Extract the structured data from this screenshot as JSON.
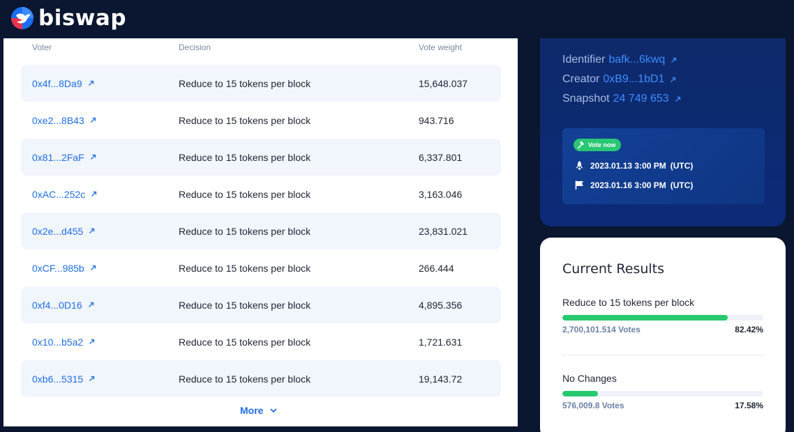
{
  "brand": {
    "name": "biswap"
  },
  "votes_table": {
    "columns": {
      "voter": "Voter",
      "decision": "Decision",
      "weight": "Vote weight"
    },
    "rows": [
      {
        "voter": "0x4f...8Da9",
        "decision": "Reduce to 15 tokens per block",
        "weight": "15,648.037"
      },
      {
        "voter": "0xe2...8B43",
        "decision": "Reduce to 15 tokens per block",
        "weight": "943.716"
      },
      {
        "voter": "0x81...2FaF",
        "decision": "Reduce to 15 tokens per block",
        "weight": "6,337.801"
      },
      {
        "voter": "0xAC...252c",
        "decision": "Reduce to 15 tokens per block",
        "weight": "3,163.046"
      },
      {
        "voter": "0x2e...d455",
        "decision": "Reduce to 15 tokens per block",
        "weight": "23,831.021"
      },
      {
        "voter": "0xCF...985b",
        "decision": "Reduce to 15 tokens per block",
        "weight": "266.444"
      },
      {
        "voter": "0xf4...0D16",
        "decision": "Reduce to 15 tokens per block",
        "weight": "4,895.356"
      },
      {
        "voter": "0x10...b5a2",
        "decision": "Reduce to 15 tokens per block",
        "weight": "1,721.631"
      },
      {
        "voter": "0xb6...5315",
        "decision": "Reduce to 15 tokens per block",
        "weight": "19,143.72"
      }
    ],
    "more_label": "More"
  },
  "info": {
    "identifier_label": "Identifier",
    "identifier_value": "bafk...6kwq",
    "creator_label": "Creator",
    "creator_value": "0xB9...1bD1",
    "snapshot_label": "Snapshot",
    "snapshot_value": "24 749 653",
    "status_badge": "Vote now",
    "start_date": "2023.01.13 3:00 PM",
    "start_tz": "(UTC)",
    "end_date": "2023.01.16 3:00 PM",
    "end_tz": "(UTC)"
  },
  "results": {
    "title": "Current Results",
    "options": [
      {
        "label": "Reduce to 15 tokens per block",
        "votes": "2,700,101.514 Votes",
        "percent": "82.42%",
        "fraction": 0.8242
      },
      {
        "label": "No Changes",
        "votes": "576,009.8 Votes",
        "percent": "17.58%",
        "fraction": 0.1758
      }
    ]
  },
  "colors": {
    "background": "#0b1630",
    "link": "#1f6ee0",
    "accent_blue": "#3e8cff",
    "success_green": "#27c96f"
  },
  "icons": [
    "biswap-logo-icon",
    "external-link-icon",
    "chevron-down-icon",
    "hammer-icon",
    "rocket-icon",
    "flag-icon"
  ]
}
